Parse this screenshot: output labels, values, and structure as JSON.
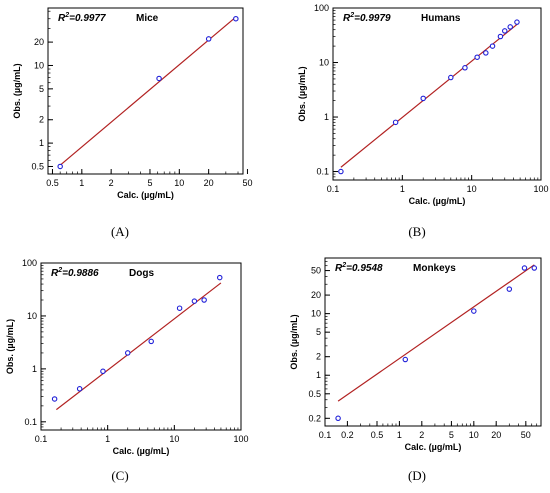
{
  "chart_data": [
    {
      "type": "scatter",
      "panel": "(A)",
      "species": "Mice",
      "r2_prefix": "R",
      "r2_sup": "2",
      "r2_value": "=0.9977",
      "xlabel": "Calc. (µg/mL)",
      "ylabel": "Obs. (µg/mL)",
      "x_scale": "log",
      "y_scale": "log",
      "xlim": [
        0.45,
        45
      ],
      "ylim": [
        0.4,
        55
      ],
      "xticks": [
        {
          "v": 0.5,
          "label": "0.5"
        },
        {
          "v": 1,
          "label": "1"
        },
        {
          "v": 2,
          "label": "2"
        },
        {
          "v": 5,
          "label": "5"
        },
        {
          "v": 10,
          "label": "10"
        },
        {
          "v": 20,
          "label": "20"
        },
        {
          "v": 50,
          "label": "50"
        }
      ],
      "yticks": [
        {
          "v": 0.5,
          "label": "0.5"
        },
        {
          "v": 1,
          "label": "1"
        },
        {
          "v": 2,
          "label": "2"
        },
        {
          "v": 5,
          "label": "5"
        },
        {
          "v": 10,
          "label": "10"
        },
        {
          "v": 20,
          "label": "20"
        }
      ],
      "points": [
        [
          0.6,
          0.5
        ],
        [
          6.2,
          6.8
        ],
        [
          20,
          22
        ],
        [
          38,
          40
        ]
      ],
      "fit_line": [
        [
          0.6,
          0.52
        ],
        [
          38,
          42
        ]
      ]
    },
    {
      "type": "scatter",
      "panel": "(B)",
      "species": "Humans",
      "r2_prefix": "R",
      "r2_sup": "2",
      "r2_value": "=0.9979",
      "xlabel": "Calc. (µg/mL)",
      "ylabel": "Obs. (µg/mL)",
      "x_scale": "log",
      "y_scale": "log",
      "xlim": [
        0.1,
        100
      ],
      "ylim": [
        0.07,
        100
      ],
      "xticks": [
        {
          "v": 0.1,
          "label": "0.1"
        },
        {
          "v": 1,
          "label": "1"
        },
        {
          "v": 10,
          "label": "10"
        },
        {
          "v": 100,
          "label": "100"
        }
      ],
      "yticks": [
        {
          "v": 0.1,
          "label": "0.1"
        },
        {
          "v": 1,
          "label": "1"
        },
        {
          "v": 10,
          "label": "10"
        },
        {
          "v": 100,
          "label": "100"
        }
      ],
      "points": [
        [
          0.13,
          0.1
        ],
        [
          0.8,
          0.8
        ],
        [
          2,
          2.2
        ],
        [
          5,
          5.3
        ],
        [
          8,
          8
        ],
        [
          12,
          12.5
        ],
        [
          16,
          15
        ],
        [
          20,
          20
        ],
        [
          26,
          30
        ],
        [
          30,
          38
        ],
        [
          36,
          45
        ],
        [
          45,
          55
        ]
      ],
      "fit_line": [
        [
          0.13,
          0.12
        ],
        [
          45,
          50
        ]
      ]
    },
    {
      "type": "scatter",
      "panel": "(C)",
      "species": "Dogs",
      "r2_prefix": "R",
      "r2_sup": "2",
      "r2_value": "=0.9886",
      "xlabel": "Calc. (µg/mL)",
      "ylabel": "Obs. (µg/mL)",
      "x_scale": "log",
      "y_scale": "log",
      "xlim": [
        0.1,
        100
      ],
      "ylim": [
        0.07,
        100
      ],
      "xticks": [
        {
          "v": 0.1,
          "label": "0.1"
        },
        {
          "v": 1,
          "label": "1"
        },
        {
          "v": 10,
          "label": "10"
        },
        {
          "v": 100,
          "label": "100"
        }
      ],
      "yticks": [
        {
          "v": 0.1,
          "label": "0.1"
        },
        {
          "v": 1,
          "label": "1"
        },
        {
          "v": 10,
          "label": "10"
        },
        {
          "v": 100,
          "label": "100"
        }
      ],
      "points": [
        [
          0.16,
          0.27
        ],
        [
          0.38,
          0.42
        ],
        [
          0.85,
          0.9
        ],
        [
          2,
          2
        ],
        [
          4.5,
          3.3
        ],
        [
          12,
          14
        ],
        [
          20,
          19
        ],
        [
          28,
          20
        ],
        [
          48,
          53
        ]
      ],
      "fit_line": [
        [
          0.17,
          0.17
        ],
        [
          50,
          42
        ]
      ]
    },
    {
      "type": "scatter",
      "panel": "(D)",
      "species": "Monkeys",
      "r2_prefix": "R",
      "r2_sup": "2",
      "r2_value": "=0.9548",
      "xlabel": "Calc. (µg/mL)",
      "ylabel": "Obs. (µg/mL)",
      "x_scale": "log",
      "y_scale": "log",
      "xlim": [
        0.1,
        80
      ],
      "ylim": [
        0.15,
        80
      ],
      "xticks": [
        {
          "v": 0.1,
          "label": "0.1"
        },
        {
          "v": 0.2,
          "label": "0.2"
        },
        {
          "v": 0.5,
          "label": "0.5"
        },
        {
          "v": 1,
          "label": "1"
        },
        {
          "v": 2,
          "label": "2"
        },
        {
          "v": 5,
          "label": "5"
        },
        {
          "v": 10,
          "label": "10"
        },
        {
          "v": 20,
          "label": "20"
        },
        {
          "v": 50,
          "label": "50"
        }
      ],
      "yticks": [
        {
          "v": 0.2,
          "label": "0.2"
        },
        {
          "v": 0.5,
          "label": "0.5"
        },
        {
          "v": 1,
          "label": "1"
        },
        {
          "v": 2,
          "label": "2"
        },
        {
          "v": 5,
          "label": "5"
        },
        {
          "v": 10,
          "label": "10"
        },
        {
          "v": 20,
          "label": "20"
        },
        {
          "v": 50,
          "label": "50"
        }
      ],
      "points": [
        [
          0.15,
          0.2
        ],
        [
          1.2,
          1.8
        ],
        [
          10,
          11
        ],
        [
          30,
          25
        ],
        [
          48,
          55
        ],
        [
          65,
          55
        ]
      ],
      "fit_line": [
        [
          0.15,
          0.38
        ],
        [
          65,
          62
        ]
      ]
    }
  ],
  "colors": {
    "line": "#b22222",
    "marker": "#1f1fd8",
    "axis": "#000000"
  }
}
